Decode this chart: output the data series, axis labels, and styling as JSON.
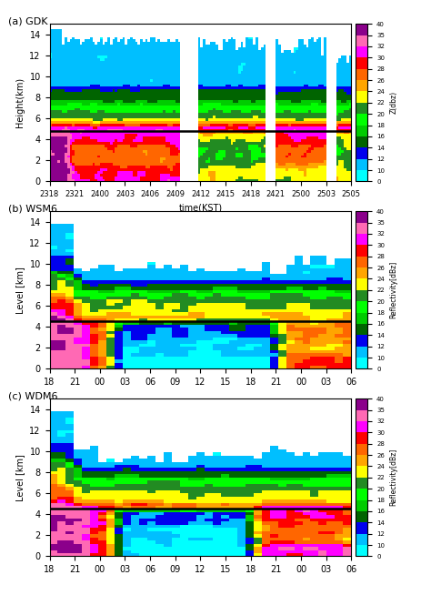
{
  "panel_titles": [
    "(a) GDK",
    "(b) WSM6",
    "(c) WDM6"
  ],
  "panel_a_xlabel": "time(KST)",
  "panel_a_ylabel": "Height(km)",
  "panel_bc_ylabel": "Level [km]",
  "panel_a_xticks": [
    "2318",
    "2321",
    "2400",
    "2403",
    "2406",
    "2409",
    "2412",
    "2415",
    "2418",
    "2421",
    "2500",
    "2503",
    "2505"
  ],
  "panel_bc_xticks": [
    "18",
    "21",
    "00",
    "03",
    "06",
    "09",
    "12",
    "15",
    "18",
    "21",
    "00",
    "03",
    "06"
  ],
  "ylim": [
    0,
    15
  ],
  "yticks": [
    0,
    2,
    4,
    6,
    8,
    10,
    12,
    14
  ],
  "colorbar_ticks": [
    0,
    10,
    12,
    14,
    16,
    18,
    20,
    22,
    24,
    26,
    28,
    30,
    32,
    35,
    40
  ],
  "colorbar_label_a": "Z(dbz)",
  "colorbar_label_bc": "Reflectivity[dBz]",
  "hline_y_a": 4.8,
  "hline_y_bc": 4.5,
  "bounds": [
    0,
    10,
    12,
    14,
    16,
    18,
    20,
    22,
    24,
    26,
    28,
    30,
    32,
    35,
    40
  ],
  "colors_list": [
    "#00FFFF",
    "#00BFFF",
    "#0000EE",
    "#006400",
    "#00CC00",
    "#00FF00",
    "#228B22",
    "#FFFF00",
    "#FFA500",
    "#FF6600",
    "#FF0000",
    "#FF00FF",
    "#FF69B4",
    "#8B008B"
  ],
  "figsize": [
    4.74,
    6.54
  ],
  "dpi": 100
}
